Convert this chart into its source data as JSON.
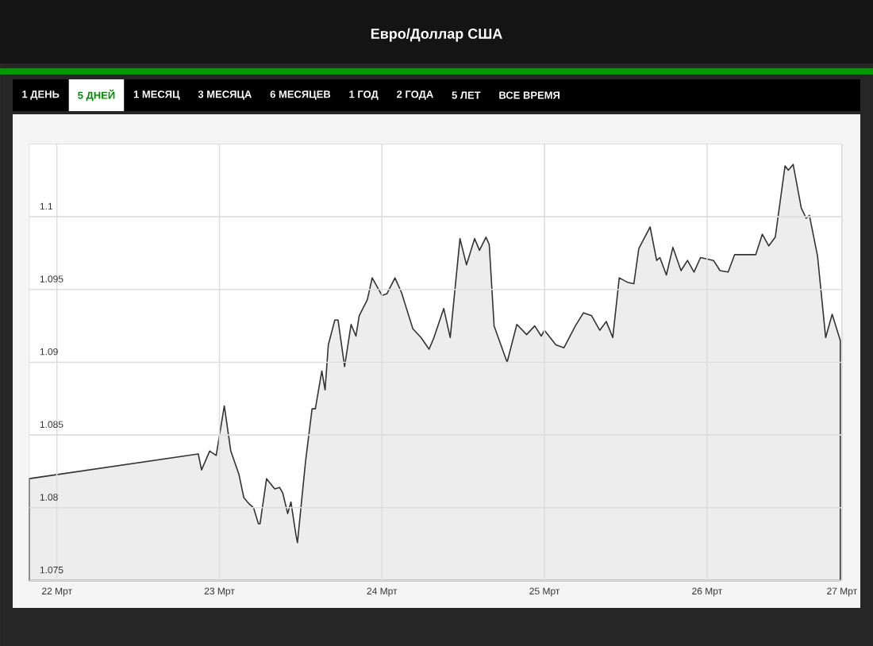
{
  "chart_data": {
    "type": "area",
    "title": "Евро/Доллар США",
    "annotations": [
      "1 ДЕНЬ",
      "5 ДНЕЙ",
      "1 МЕСЯЦ",
      "3 МЕСЯЦА",
      "6 МЕСЯЦЕВ",
      "1 ГОД",
      "2 ГОДА",
      "5 ЛЕТ",
      "ВСЕ ВРЕМЯ"
    ],
    "color": "#333333",
    "x": [
      21.83,
      22.87,
      22.89,
      22.94,
      22.98,
      23.03,
      23.07,
      23.12,
      23.15,
      23.18,
      23.21,
      23.24,
      23.25,
      23.29,
      23.34,
      23.37,
      23.39,
      23.42,
      23.44,
      23.47,
      23.48,
      23.53,
      23.57,
      23.59,
      23.63,
      23.65,
      23.67,
      23.71,
      23.73,
      23.77,
      23.81,
      23.84,
      23.86,
      23.91,
      23.94,
      24.0,
      24.03,
      24.08,
      24.12,
      24.19,
      24.24,
      24.29,
      24.32,
      24.38,
      24.42,
      24.48,
      24.52,
      24.57,
      24.6,
      24.64,
      24.66,
      24.69,
      24.77,
      24.83,
      24.89,
      24.94,
      24.98,
      25.0,
      25.07,
      25.12,
      25.19,
      25.24,
      25.29,
      25.34,
      25.38,
      25.42,
      25.46,
      25.51,
      25.55,
      25.58,
      25.65,
      25.69,
      25.71,
      25.75,
      25.79,
      25.84,
      25.88,
      25.92,
      25.96,
      26.04,
      26.08,
      26.13,
      26.17,
      26.21,
      26.3,
      26.34,
      26.38,
      26.42,
      26.48,
      26.5,
      26.53,
      26.58,
      26.61,
      26.63,
      26.68,
      26.73,
      26.77,
      26.82
    ],
    "values": [
      1.082,
      1.0837,
      1.0826,
      1.0839,
      1.0836,
      1.087,
      1.0839,
      1.0823,
      1.0807,
      1.0803,
      1.08,
      1.0789,
      1.0789,
      1.082,
      1.0813,
      1.0814,
      1.081,
      1.0796,
      1.0804,
      1.0782,
      1.0776,
      1.0832,
      1.0868,
      1.0868,
      1.0894,
      1.0881,
      1.0912,
      1.0929,
      1.0929,
      1.0897,
      1.0926,
      1.0918,
      1.0932,
      1.0943,
      1.0958,
      1.0946,
      1.0947,
      1.0958,
      1.0948,
      1.0923,
      1.0917,
      1.0909,
      1.0917,
      1.0937,
      1.0917,
      1.0985,
      1.0967,
      1.0985,
      1.0977,
      1.0986,
      1.0981,
      1.0925,
      1.09,
      1.0926,
      1.0919,
      1.0925,
      1.0918,
      1.0922,
      1.0912,
      1.091,
      1.0925,
      1.0934,
      1.0932,
      1.0922,
      1.0928,
      1.0917,
      1.0958,
      1.0955,
      1.0954,
      1.0978,
      1.0993,
      1.097,
      1.0972,
      1.096,
      1.0979,
      1.0963,
      1.097,
      1.0962,
      1.0972,
      1.097,
      1.0963,
      1.0962,
      1.0974,
      1.0974,
      1.0974,
      1.0988,
      1.098,
      1.0986,
      1.1035,
      1.1032,
      1.1036,
      1.1006,
      1.0999,
      1.1001,
      1.0973,
      1.0917,
      1.0933,
      1.0915
    ],
    "xlim": [
      21.83,
      26.83
    ],
    "xticks": [
      {
        "value": 22,
        "label": "22 Мрт"
      },
      {
        "value": 23,
        "label": "23 Мрт"
      },
      {
        "value": 24,
        "label": "24 Мрт"
      },
      {
        "value": 25,
        "label": "25 Мрт"
      },
      {
        "value": 26,
        "label": "26 Мрт"
      },
      {
        "value": 26.83,
        "label": "27 Мрт"
      }
    ],
    "ylim": [
      1.075,
      1.105
    ],
    "yticks": [
      1.075,
      1.08,
      1.085,
      1.09,
      1.095,
      1.1
    ],
    "grid": true
  }
}
